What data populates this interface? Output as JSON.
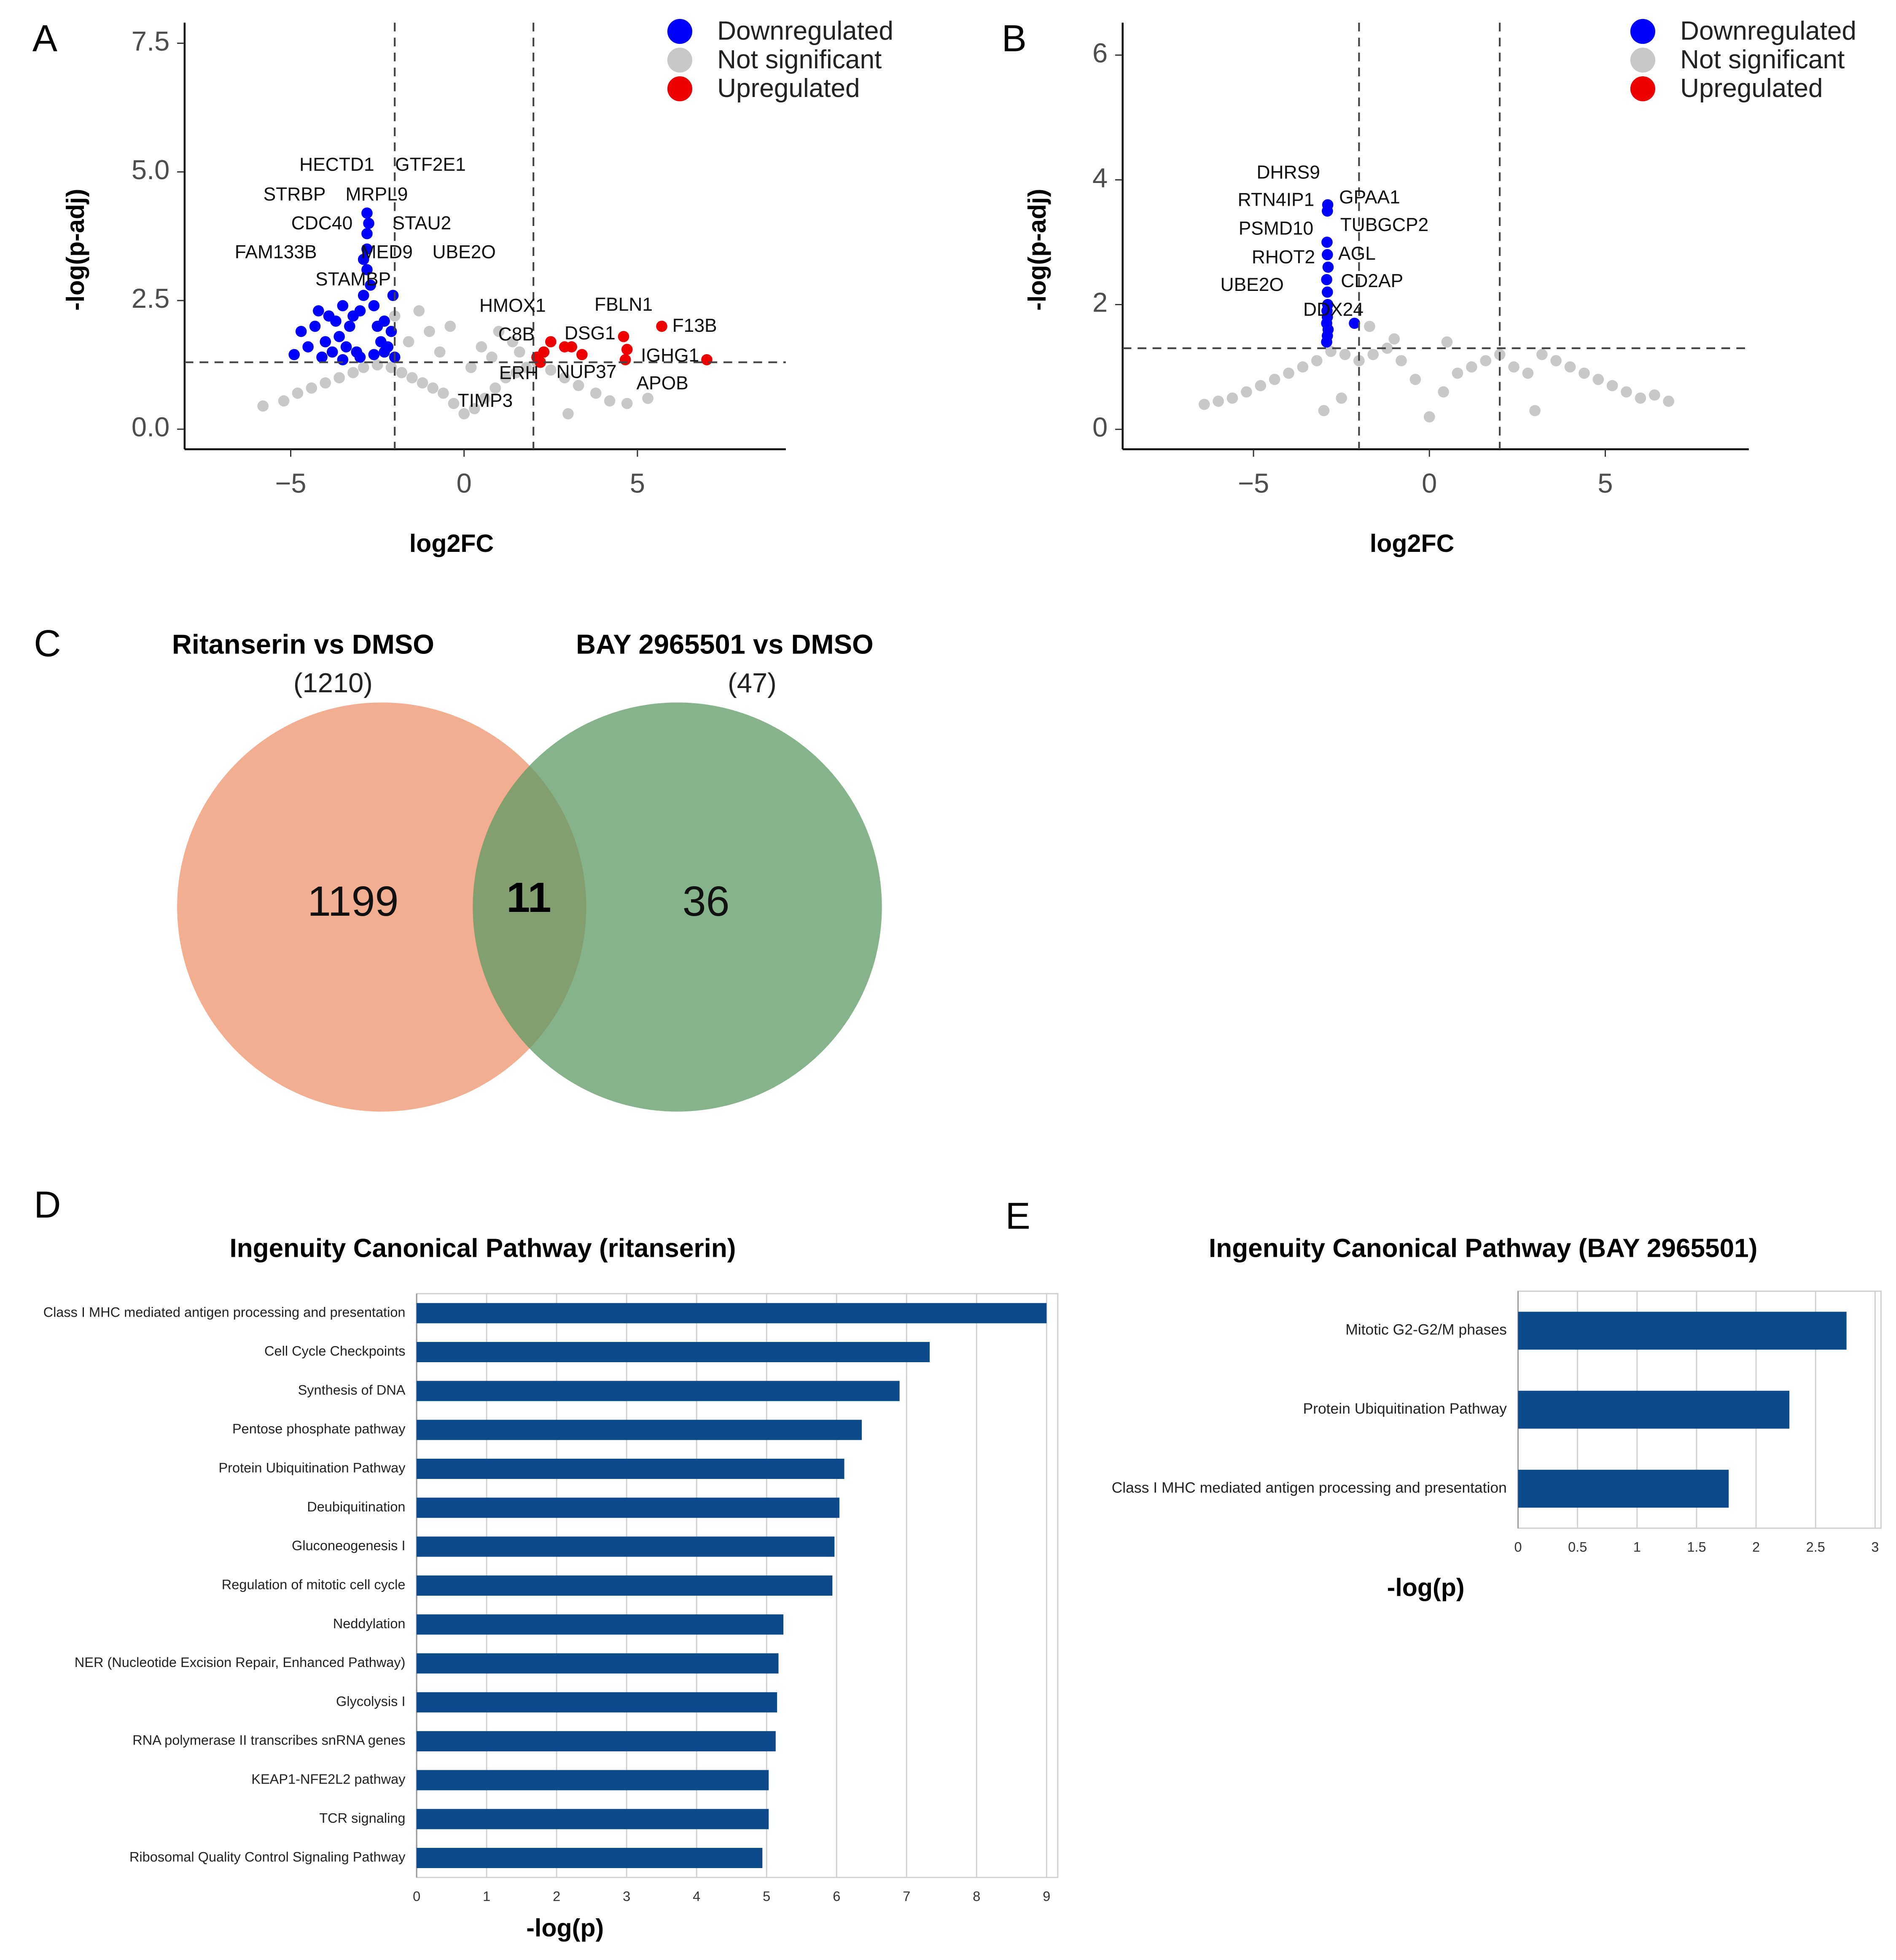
{
  "chart_data": [
    {
      "type": "scatter",
      "panel": "A",
      "x_label": "log2FC",
      "y_label": "-log(p-adj)",
      "xlim": [
        -8.06,
        9.28
      ],
      "ylim": [
        -0.39,
        7.9
      ],
      "xticks": [
        {
          "value": -5,
          "label": "−5"
        },
        0,
        5
      ],
      "yticks": [
        {
          "value": 0,
          "label": "0.0"
        },
        2.5,
        {
          "value": 5,
          "label": "5.0"
        },
        7.5
      ],
      "thresholds": {
        "x": [
          -2,
          2
        ],
        "y": 1.3
      },
      "legend": "top-right",
      "series": [
        {
          "name": "Downregulated",
          "color": "#0000ff",
          "x": [
            -4.9,
            -4.7,
            -4.5,
            -4.3,
            -4.2,
            -4.0,
            -3.9,
            -3.8,
            -3.7,
            -3.6,
            -3.5,
            -3.4,
            -3.3,
            -3.2,
            -3.1,
            -3.0,
            -2.9,
            -2.8,
            -2.7,
            -2.6,
            -2.5,
            -2.4,
            -2.3,
            -2.2,
            -2.1,
            -2.0,
            -3.5,
            -3.0,
            -2.6,
            -2.3,
            -4.1,
            -2.8,
            -2.8,
            -2.75,
            -2.8,
            -2.9,
            -2.05
          ],
          "y": [
            1.45,
            1.9,
            1.6,
            2.0,
            2.3,
            1.7,
            2.2,
            1.5,
            2.1,
            1.8,
            2.4,
            1.6,
            2.0,
            2.2,
            1.5,
            2.3,
            2.6,
            3.1,
            2.8,
            2.4,
            2.0,
            1.7,
            2.1,
            1.6,
            1.9,
            1.4,
            1.35,
            1.4,
            1.45,
            1.5,
            1.4,
            3.5,
            3.8,
            4.0,
            4.2,
            3.3,
            2.6
          ]
        },
        {
          "name": "Not significant",
          "color": "#c8c8c8",
          "x": [
            -5.8,
            -5.2,
            -4.8,
            -4.4,
            -4.0,
            -3.6,
            -3.2,
            -2.9,
            -2.5,
            -2.1,
            -1.8,
            -1.5,
            -1.2,
            -0.9,
            -0.6,
            -0.3,
            0,
            0.3,
            0.6,
            0.9,
            1.2,
            1.5,
            1.8,
            2.1,
            2.5,
            2.9,
            3.3,
            3.8,
            4.2,
            4.7,
            5.3,
            -1.6,
            -1.0,
            -0.4,
            0.5,
            1.0,
            1.6,
            2.2,
            -2.0,
            -1.3,
            -0.7,
            0.2,
            0.8,
            1.4,
            3.0
          ],
          "y": [
            0.45,
            0.55,
            0.7,
            0.8,
            0.9,
            1.0,
            1.1,
            1.2,
            1.25,
            1.2,
            1.1,
            1.0,
            0.9,
            0.8,
            0.7,
            0.5,
            0.3,
            0.4,
            0.6,
            0.8,
            1.0,
            1.1,
            1.2,
            1.3,
            1.15,
            1.0,
            0.85,
            0.7,
            0.55,
            0.5,
            0.6,
            1.7,
            1.9,
            2.0,
            1.6,
            1.9,
            1.5,
            1.4,
            2.2,
            2.3,
            1.5,
            1.2,
            1.4,
            1.7,
            0.3
          ]
        },
        {
          "name": "Upregulated",
          "color": "#ee0000",
          "x": [
            2.1,
            2.3,
            2.5,
            2.9,
            3.1,
            3.4,
            4.6,
            4.7,
            4.65,
            5.7,
            7.0,
            2.2
          ],
          "y": [
            1.4,
            1.5,
            1.7,
            1.6,
            1.6,
            1.45,
            1.8,
            1.55,
            1.35,
            2.0,
            1.35,
            1.3
          ]
        }
      ],
      "annotations": [
        {
          "text": "HECTD1",
          "x": -3.67,
          "y": 5.12
        },
        {
          "text": "GTF2E1",
          "x": -0.97,
          "y": 5.12
        },
        {
          "text": "STRBP",
          "x": -4.89,
          "y": 4.54
        },
        {
          "text": "MRPL9",
          "x": -2.52,
          "y": 4.54
        },
        {
          "text": "CDC40",
          "x": -4.1,
          "y": 3.98
        },
        {
          "text": "STAU2",
          "x": -1.22,
          "y": 3.98
        },
        {
          "text": "FAM133B",
          "x": -5.43,
          "y": 3.42
        },
        {
          "text": "MED9",
          "x": -2.23,
          "y": 3.42
        },
        {
          "text": "UBE2O",
          "x": 0,
          "y": 3.42
        },
        {
          "text": "STAMBP",
          "x": -3.2,
          "y": 2.89
        },
        {
          "text": "HMOX1",
          "x": 1.4,
          "y": 2.38
        },
        {
          "text": "C8B",
          "x": 1.51,
          "y": 1.82
        },
        {
          "text": "DSG1",
          "x": 3.63,
          "y": 1.84
        },
        {
          "text": "FBLN1",
          "x": 4.6,
          "y": 2.4
        },
        {
          "text": "F13B",
          "x": 6.65,
          "y": 1.99
        },
        {
          "text": "ERH",
          "x": 1.58,
          "y": 1.07
        },
        {
          "text": "NUP37",
          "x": 3.53,
          "y": 1.09
        },
        {
          "text": "IGHG1",
          "x": 5.94,
          "y": 1.41
        },
        {
          "text": "APOB",
          "x": 5.72,
          "y": 0.87
        },
        {
          "text": "TIMP3",
          "x": 0.61,
          "y": 0.53
        }
      ]
    },
    {
      "type": "scatter",
      "panel": "B",
      "x_label": "log2FC",
      "y_label": "-log(p-adj)",
      "xlim": [
        -8.72,
        9.08
      ],
      "ylim": [
        -0.32,
        6.52
      ],
      "xticks": [
        {
          "value": -5,
          "label": "−5"
        },
        0,
        5
      ],
      "yticks": [
        0,
        2,
        4,
        6
      ],
      "thresholds": {
        "x": [
          -2,
          2
        ],
        "y": 1.3
      },
      "legend": "top-right",
      "series": [
        {
          "name": "Downregulated",
          "color": "#0000ff",
          "x": [
            -2.92,
            -2.9,
            -2.88,
            -2.92,
            -2.9,
            -2.91,
            -2.89,
            -2.9,
            -2.92,
            -2.88,
            -2.9,
            -2.91,
            -2.9,
            -2.89,
            -2.13
          ],
          "y": [
            1.4,
            1.5,
            1.6,
            1.7,
            1.8,
            1.9,
            2.0,
            2.2,
            2.4,
            2.6,
            2.8,
            3.0,
            3.5,
            3.6,
            1.7
          ]
        },
        {
          "name": "Not significant",
          "color": "#c8c8c8",
          "x": [
            -6.4,
            -6.0,
            -5.6,
            -5.2,
            -4.8,
            -4.4,
            -4.0,
            -3.6,
            -3.2,
            -2.8,
            -2.4,
            -2.0,
            -1.6,
            -1.2,
            -0.8,
            -0.4,
            0,
            0.4,
            0.8,
            1.2,
            1.6,
            2.0,
            2.4,
            2.8,
            3.2,
            3.6,
            4.0,
            4.4,
            4.8,
            5.2,
            5.6,
            6.0,
            6.4,
            6.8,
            -1.0,
            0.5,
            -3.0,
            -2.5,
            3.0,
            -1.7
          ],
          "y": [
            0.4,
            0.45,
            0.5,
            0.6,
            0.7,
            0.8,
            0.9,
            1.0,
            1.1,
            1.25,
            1.2,
            1.1,
            1.2,
            1.3,
            1.1,
            0.8,
            0.2,
            0.6,
            0.9,
            1.0,
            1.1,
            1.2,
            1.0,
            0.9,
            1.2,
            1.1,
            1.0,
            0.9,
            0.8,
            0.7,
            0.6,
            0.5,
            0.55,
            0.45,
            1.45,
            1.4,
            0.3,
            0.5,
            0.3,
            1.65
          ]
        },
        {
          "name": "Upregulated",
          "color": "#ee0000",
          "x": [],
          "y": []
        }
      ],
      "annotations": [
        {
          "text": "DHRS9",
          "x": -4.01,
          "y": 4.1
        },
        {
          "text": "RTN4IP1",
          "x": -4.36,
          "y": 3.66
        },
        {
          "text": "GPAA1",
          "x": -1.7,
          "y": 3.7
        },
        {
          "text": "PSMD10",
          "x": -4.36,
          "y": 3.2
        },
        {
          "text": "TUBGCP2",
          "x": -1.28,
          "y": 3.26
        },
        {
          "text": "RHOT2",
          "x": -4.15,
          "y": 2.74
        },
        {
          "text": "AGL",
          "x": -2.06,
          "y": 2.8
        },
        {
          "text": "UBE2O",
          "x": -5.04,
          "y": 2.3
        },
        {
          "text": "CD2AP",
          "x": -1.63,
          "y": 2.36
        },
        {
          "text": "DDX24",
          "x": -2.73,
          "y": 1.9
        }
      ]
    },
    {
      "type": "venn",
      "panel": "C",
      "sets": [
        {
          "name": "Ritanserin vs DMSO",
          "size": {
            "value": 1210,
            "label": "(1210)"
          },
          "only": 1199,
          "color": "#f0a07c"
        },
        {
          "name": "BAY 2965501 vs DMSO",
          "size": {
            "value": 47,
            "label": "(47)"
          },
          "only": 36,
          "color": "#5e9a64"
        }
      ],
      "overlap": 11
    },
    {
      "type": "bar",
      "orientation": "horizontal",
      "panel": "D",
      "title": "Ingenuity Canonical Pathway (ritanserin)",
      "x_label": "-log(p)",
      "categories": [
        "Class I MHC mediated antigen processing and presentation",
        "Cell Cycle Checkpoints",
        "Synthesis of DNA",
        "Pentose phosphate pathway",
        "Protein Ubiquitination Pathway",
        "Deubiquitination",
        "Gluconeogenesis I",
        "Regulation of mitotic cell cycle",
        "Neddylation",
        "NER (Nucleotide Excision Repair, Enhanced Pathway)",
        "Glycolysis I",
        "RNA polymerase II transcribes snRNA genes",
        "KEAP1-NFE2L2 pathway",
        "TCR signaling",
        "Ribosomal Quality Control Signaling Pathway"
      ],
      "values": [
        9.0,
        7.33,
        6.9,
        6.36,
        6.11,
        6.04,
        5.97,
        5.94,
        5.24,
        5.17,
        5.15,
        5.13,
        5.03,
        5.03,
        4.94
      ],
      "color": "#0d4a8b",
      "xlim": [
        0,
        9.16
      ],
      "xticks": [
        0,
        1,
        2,
        3,
        4,
        5,
        6,
        7,
        8,
        9
      ],
      "grid": true
    },
    {
      "type": "bar",
      "orientation": "horizontal",
      "panel": "E",
      "title": "Ingenuity Canonical Pathway (BAY 2965501)",
      "x_label": "-log(p)",
      "categories": [
        "Mitotic G2-G2/M phases",
        "Protein Ubiquitination Pathway",
        "Class I MHC mediated antigen processing and presentation"
      ],
      "values": [
        2.76,
        2.28,
        1.77
      ],
      "color": "#0d4a8b",
      "xlim": [
        0,
        3.05
      ],
      "xticks": [
        0,
        0.5,
        1,
        1.5,
        2,
        2.5,
        3
      ],
      "grid": true
    }
  ]
}
